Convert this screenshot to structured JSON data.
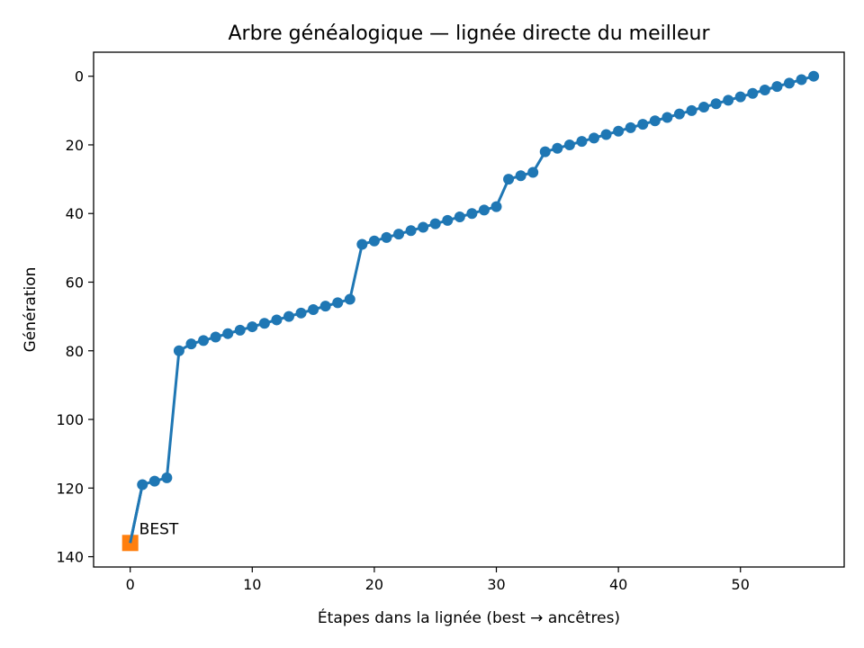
{
  "chart_data": {
    "type": "line",
    "title": "Arbre généalogique — lignée directe du meilleur",
    "xlabel": "Étapes dans la lignée (best → ancêtres)",
    "ylabel": "Génération",
    "xlim": [
      -3,
      58.5
    ],
    "ylim": [
      143,
      -7
    ],
    "y_inverted": true,
    "xticks": [
      0,
      10,
      20,
      30,
      40,
      50
    ],
    "yticks": [
      0,
      20,
      40,
      60,
      80,
      100,
      120,
      140
    ],
    "grid": false,
    "series": [
      {
        "color": "#1f77b4",
        "x": [
          0,
          1,
          2,
          3,
          4,
          5,
          6,
          7,
          8,
          9,
          10,
          11,
          12,
          13,
          14,
          15,
          16,
          17,
          18,
          19,
          20,
          21,
          22,
          23,
          24,
          25,
          26,
          27,
          28,
          29,
          30,
          31,
          32,
          33,
          34,
          35,
          36,
          37,
          38,
          39,
          40,
          41,
          42,
          43,
          44,
          45,
          46,
          47,
          48,
          49,
          50,
          51,
          52,
          53,
          54,
          55,
          56
        ],
        "y": [
          136,
          119,
          118,
          117,
          80,
          78,
          77,
          76,
          75,
          74,
          73,
          72,
          71,
          70,
          69,
          68,
          67,
          66,
          65,
          49,
          48,
          47,
          46,
          45,
          44,
          43,
          42,
          41,
          40,
          39,
          38,
          30,
          29,
          28,
          22,
          21,
          20,
          19,
          18,
          17,
          16,
          15,
          14,
          13,
          12,
          11,
          10,
          9,
          8,
          7,
          6,
          5,
          4,
          3,
          2,
          1,
          0
        ]
      }
    ],
    "highlight": {
      "x": 0,
      "y": 136,
      "color": "#ff7f0e",
      "marker": "square"
    },
    "annotations": [
      {
        "text": "BEST",
        "x": 0,
        "y": 136
      }
    ]
  }
}
